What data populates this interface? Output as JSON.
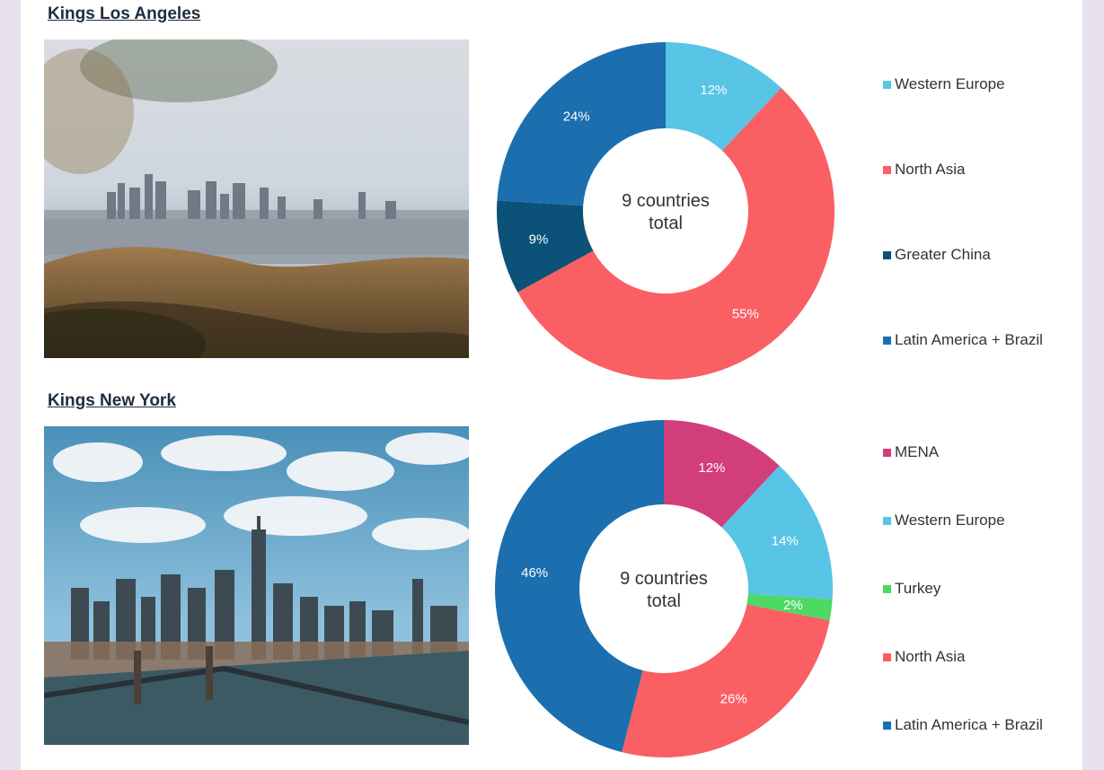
{
  "sections": [
    {
      "title": "Kings Los Angeles",
      "photo_alt": "Los Angeles skyline",
      "chart_data": {
        "type": "pie",
        "donut": true,
        "center_label": [
          "9 countries",
          "total"
        ],
        "slices": [
          {
            "name": "Western Europe",
            "value": 12,
            "label": "12%",
            "color": "#58c4e6"
          },
          {
            "name": "North Asia",
            "value": 55,
            "label": "55%",
            "color": "#fa5f63"
          },
          {
            "name": "Greater China",
            "value": 9,
            "label": "9%",
            "color": "#0c5177"
          },
          {
            "name": "Latin America + Brazil",
            "value": 24,
            "label": "24%",
            "color": "#1b6fae"
          }
        ],
        "legend": [
          "Western Europe",
          "North Asia",
          "Greater China",
          "Latin America + Brazil"
        ],
        "legend_placement": "right"
      }
    },
    {
      "title": "Kings New York",
      "photo_alt": "New York skyline",
      "chart_data": {
        "type": "pie",
        "donut": true,
        "center_label": [
          "9 countries",
          "total"
        ],
        "slices": [
          {
            "name": "MENA",
            "value": 12,
            "label": "12%",
            "color": "#d23e7c"
          },
          {
            "name": "Western Europe",
            "value": 14,
            "label": "14%",
            "color": "#58c4e6"
          },
          {
            "name": "Turkey",
            "value": 2,
            "label": "2%",
            "color": "#4cd964"
          },
          {
            "name": "North Asia",
            "value": 26,
            "label": "26%",
            "color": "#fa5f63"
          },
          {
            "name": "Latin America + Brazil",
            "value": 46,
            "label": "46%",
            "color": "#1b6fae"
          }
        ],
        "legend": [
          "MENA",
          "Western Europe",
          "Turkey",
          "North Asia",
          "Latin America + Brazil"
        ],
        "legend_placement": "right"
      }
    }
  ]
}
